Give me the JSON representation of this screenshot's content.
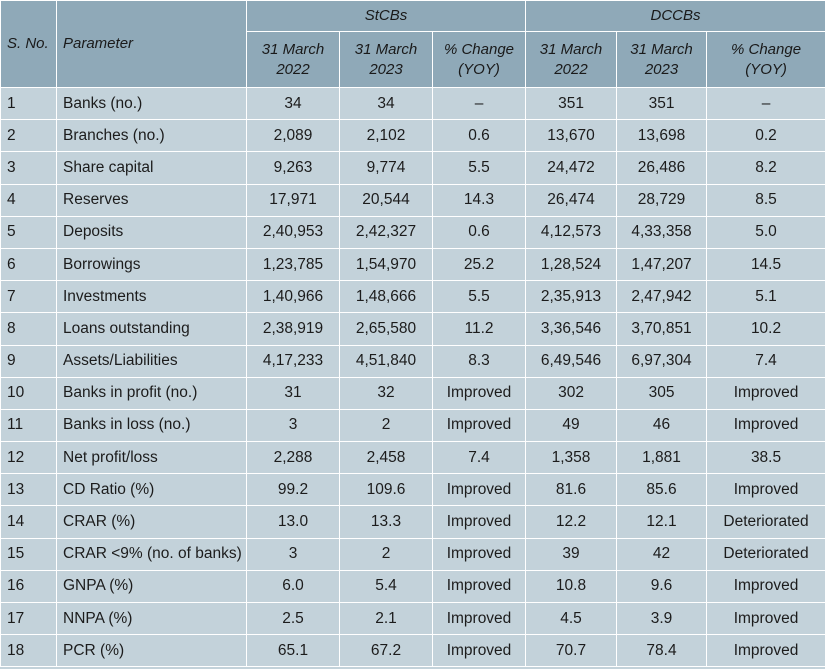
{
  "header": {
    "sno": "S. No.",
    "parameter": "Parameter",
    "group1": "StCBs",
    "group2": "DCCBs",
    "col_2022": "31 March 2022",
    "col_2023": "31 March 2023",
    "col_change": "% Change (YOY)"
  },
  "rows": [
    {
      "sno": "1",
      "parameter": "Banks (no.)",
      "st2022": "34",
      "st2023": "34",
      "stchg": "–",
      "dc2022": "351",
      "dc2023": "351",
      "dcchg": "–"
    },
    {
      "sno": "2",
      "parameter": "Branches (no.)",
      "st2022": "2,089",
      "st2023": "2,102",
      "stchg": "0.6",
      "dc2022": "13,670",
      "dc2023": "13,698",
      "dcchg": "0.2"
    },
    {
      "sno": "3",
      "parameter": "Share capital",
      "st2022": "9,263",
      "st2023": "9,774",
      "stchg": "5.5",
      "dc2022": "24,472",
      "dc2023": "26,486",
      "dcchg": "8.2"
    },
    {
      "sno": "4",
      "parameter": "Reserves",
      "st2022": "17,971",
      "st2023": "20,544",
      "stchg": "14.3",
      "dc2022": "26,474",
      "dc2023": "28,729",
      "dcchg": "8.5"
    },
    {
      "sno": "5",
      "parameter": "Deposits",
      "st2022": "2,40,953",
      "st2023": "2,42,327",
      "stchg": "0.6",
      "dc2022": "4,12,573",
      "dc2023": "4,33,358",
      "dcchg": "5.0"
    },
    {
      "sno": "6",
      "parameter": "Borrowings",
      "st2022": "1,23,785",
      "st2023": "1,54,970",
      "stchg": "25.2",
      "dc2022": "1,28,524",
      "dc2023": "1,47,207",
      "dcchg": "14.5"
    },
    {
      "sno": "7",
      "parameter": "Investments",
      "st2022": "1,40,966",
      "st2023": "1,48,666",
      "stchg": "5.5",
      "dc2022": "2,35,913",
      "dc2023": "2,47,942",
      "dcchg": "5.1"
    },
    {
      "sno": "8",
      "parameter": "Loans outstanding",
      "st2022": "2,38,919",
      "st2023": "2,65,580",
      "stchg": "11.2",
      "dc2022": "3,36,546",
      "dc2023": "3,70,851",
      "dcchg": "10.2"
    },
    {
      "sno": "9",
      "parameter": "Assets/Liabilities",
      "st2022": "4,17,233",
      "st2023": "4,51,840",
      "stchg": "8.3",
      "dc2022": "6,49,546",
      "dc2023": "6,97,304",
      "dcchg": "7.4"
    },
    {
      "sno": "10",
      "parameter": "Banks in profit (no.)",
      "st2022": "31",
      "st2023": "32",
      "stchg": "Improved",
      "dc2022": "302",
      "dc2023": "305",
      "dcchg": "Improved"
    },
    {
      "sno": "11",
      "parameter": "Banks in loss (no.)",
      "st2022": "3",
      "st2023": "2",
      "stchg": "Improved",
      "dc2022": "49",
      "dc2023": "46",
      "dcchg": "Improved"
    },
    {
      "sno": "12",
      "parameter": "Net profit/loss",
      "st2022": "2,288",
      "st2023": "2,458",
      "stchg": "7.4",
      "dc2022": "1,358",
      "dc2023": "1,881",
      "dcchg": "38.5"
    },
    {
      "sno": "13",
      "parameter": "CD Ratio (%)",
      "st2022": "99.2",
      "st2023": "109.6",
      "stchg": "Improved",
      "dc2022": "81.6",
      "dc2023": "85.6",
      "dcchg": "Improved"
    },
    {
      "sno": "14",
      "parameter": "CRAR (%)",
      "st2022": "13.0",
      "st2023": "13.3",
      "stchg": "Improved",
      "dc2022": "12.2",
      "dc2023": "12.1",
      "dcchg": "Deteriorated"
    },
    {
      "sno": "15",
      "parameter": "CRAR <9% (no. of banks)",
      "st2022": "3",
      "st2023": "2",
      "stchg": "Improved",
      "dc2022": "39",
      "dc2023": "42",
      "dcchg": "Deteriorated"
    },
    {
      "sno": "16",
      "parameter": "GNPA (%)",
      "st2022": "6.0",
      "st2023": "5.4",
      "stchg": "Improved",
      "dc2022": "10.8",
      "dc2023": "9.6",
      "dcchg": "Improved"
    },
    {
      "sno": "17",
      "parameter": "NNPA (%)",
      "st2022": "2.5",
      "st2023": "2.1",
      "stchg": "Improved",
      "dc2022": "4.5",
      "dc2023": "3.9",
      "dcchg": "Improved"
    },
    {
      "sno": "18",
      "parameter": "PCR (%)",
      "st2022": "65.1",
      "st2023": "67.2",
      "stchg": "Improved",
      "dc2022": "70.7",
      "dc2023": "78.4",
      "dcchg": "Improved"
    }
  ],
  "colors": {
    "header_bg": "#8fa9b8",
    "body_bg": "#c3d2da",
    "border": "#ffffff"
  }
}
